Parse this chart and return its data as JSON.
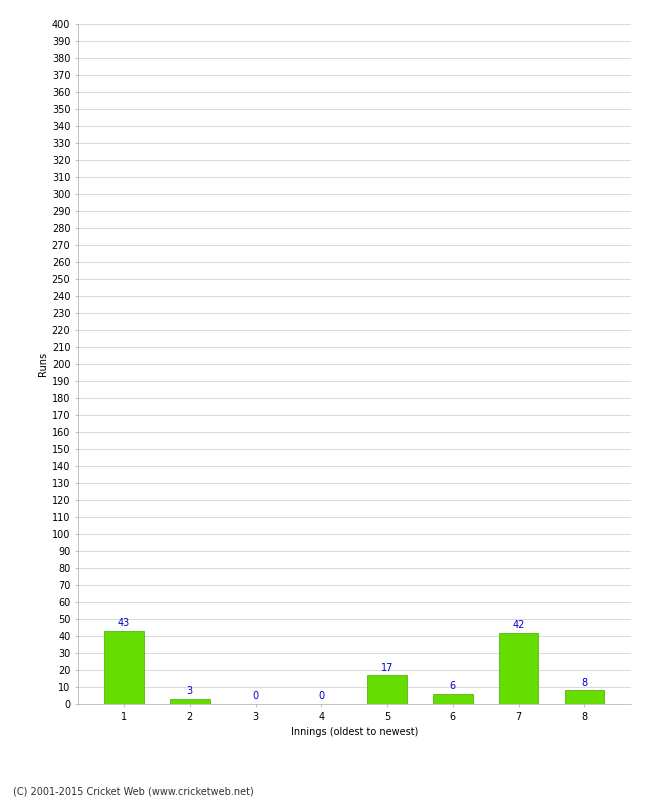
{
  "innings": [
    1,
    2,
    3,
    4,
    5,
    6,
    7,
    8
  ],
  "runs": [
    43,
    3,
    0,
    0,
    17,
    6,
    42,
    8
  ],
  "bar_color": "#66DD00",
  "bar_edge_color": "#44AA00",
  "label_color": "#0000CC",
  "ylabel": "Runs",
  "xlabel": "Innings (oldest to newest)",
  "ylim": [
    0,
    400
  ],
  "grid_color": "#CCCCCC",
  "background_color": "#FFFFFF",
  "footer": "(C) 2001-2015 Cricket Web (www.cricketweb.net)",
  "tick_fontsize": 7,
  "label_fontsize": 7,
  "axis_label_fontsize": 7,
  "footer_fontsize": 7,
  "bar_value_fontsize": 7
}
